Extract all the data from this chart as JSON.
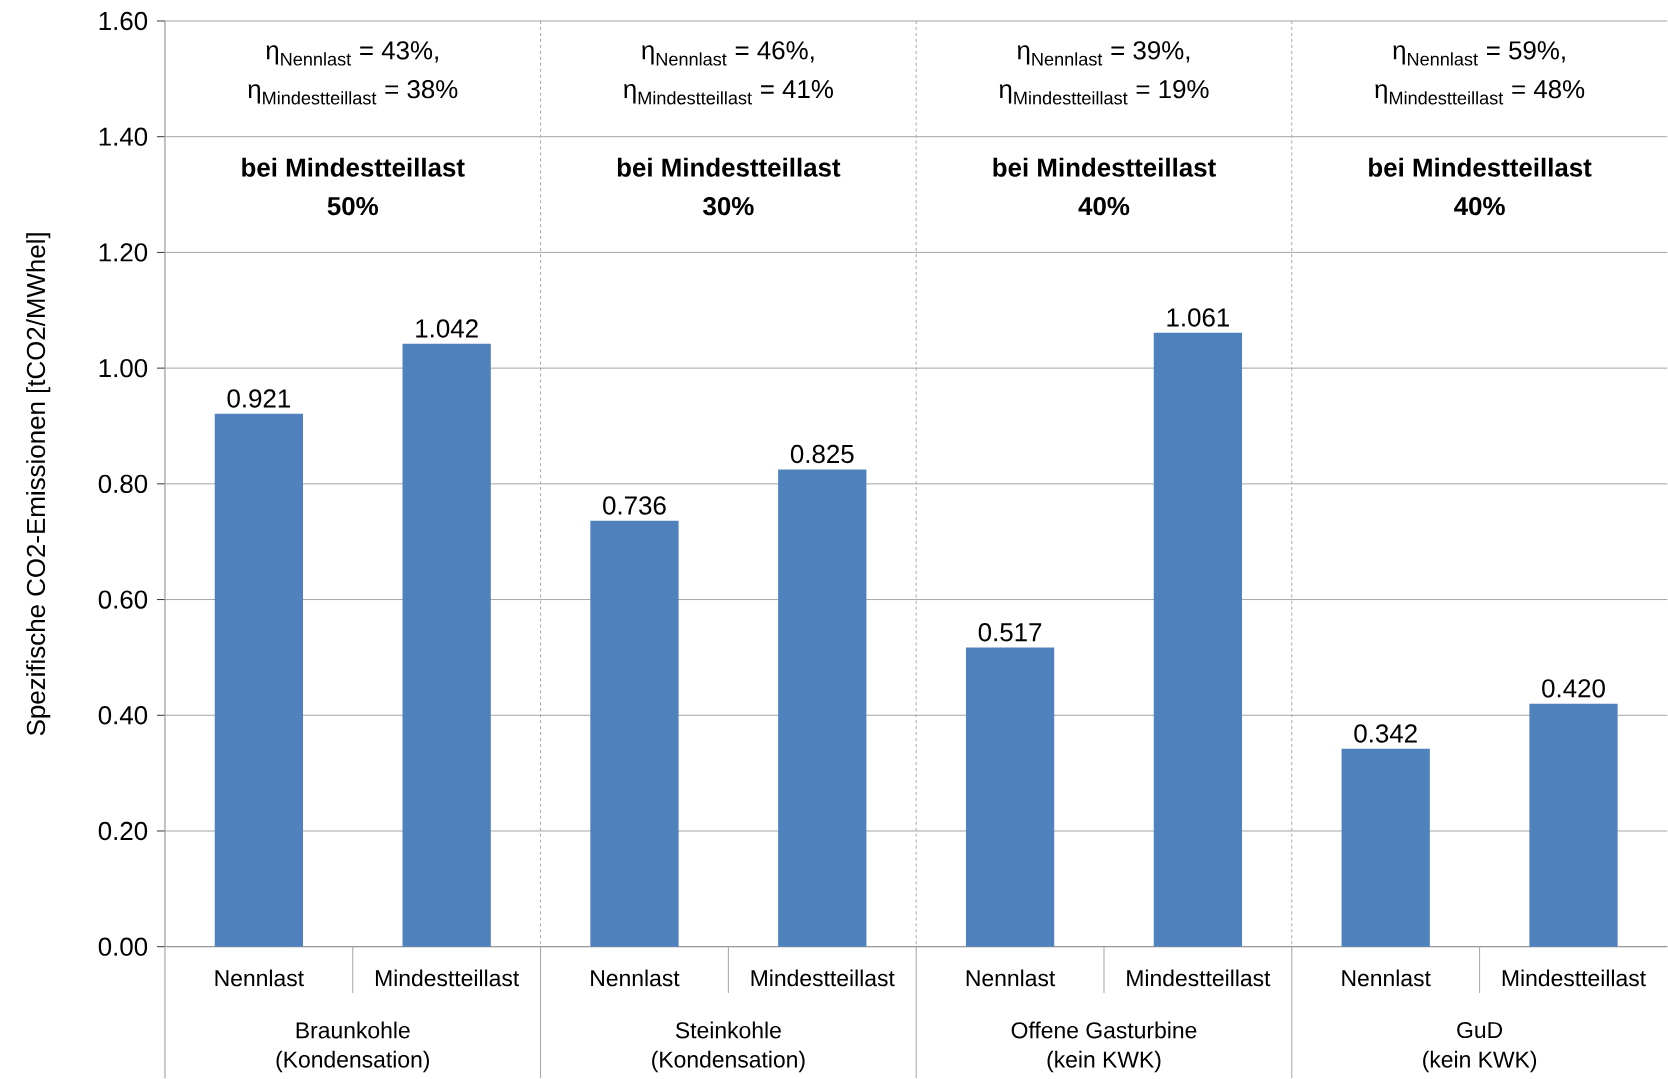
{
  "chart_data": {
    "type": "bar",
    "ylabel": "Spezifische CO2-Emissionen [tCO2/MWhel]",
    "categories": [
      "Nennlast",
      "Mindestteillast",
      "Nennlast",
      "Mindestteillast",
      "Nennlast",
      "Mindestteillast",
      "Nennlast",
      "Mindestteillast"
    ],
    "values": [
      0.921,
      1.042,
      0.736,
      0.825,
      0.517,
      1.061,
      0.342,
      0.42
    ],
    "value_labels": [
      "0.921",
      "1.042",
      "0.736",
      "0.825",
      "0.517",
      "1.061",
      "0.342",
      "0.420"
    ],
    "color": "#4f81bd",
    "ylim": [
      0,
      1.6
    ],
    "yticks": [
      {
        "value": 0,
        "label": "0.00"
      },
      {
        "value": 0.2,
        "label": "0.20"
      },
      {
        "value": 0.4,
        "label": "0.40"
      },
      {
        "value": 0.6,
        "label": "0.60"
      },
      {
        "value": 0.8,
        "label": "0.80"
      },
      {
        "value": 1.0,
        "label": "1.00"
      },
      {
        "value": 1.2,
        "label": "1.20"
      },
      {
        "value": 1.4,
        "label": "1.40"
      },
      {
        "value": 1.6,
        "label": "1.60"
      }
    ],
    "grid": "y",
    "annotations": [
      "\\text{η}_{\\text{Nennlast}}\\text{ = 43\\%,}",
      "\\text{η}_{\\text{Mindestteillast}}\\text{ = 38\\%}",
      "bei Mindestteillast",
      "50%",
      "Braunkohle",
      "(Kondensation)",
      "\\text{η}_{\\text{Nennlast}}\\text{ = 46\\%,}",
      "\\text{η}_{\\text{Mindestteillast}}\\text{ = 41\\%}",
      "bei Mindestteillast",
      "30%",
      "Steinkohle",
      "(Kondensation)",
      "\\text{η}_{\\text{Nennlast}}\\text{ = 39\\%,}",
      "\\text{η}_{\\text{Mindestteillast}}\\text{ = 19\\%}",
      "bei Mindestteillast",
      "40%",
      "Offene Gasturbine",
      "(kein KWK)",
      "\\text{η}_{\\text{Nennlast}}\\text{ = 59\\%,}",
      "\\text{η}_{\\text{Mindestteillast}}\\text{ = 48\\%}",
      "bei Mindestteillast",
      "40%",
      "GuD",
      "(kein KWK)"
    ]
  }
}
